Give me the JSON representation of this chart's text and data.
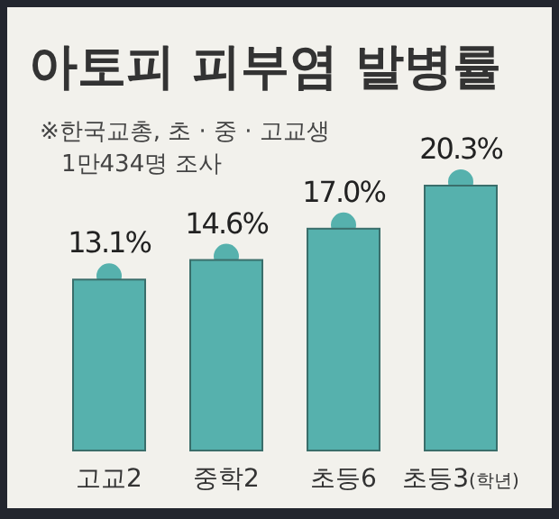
{
  "chart_data": {
    "type": "bar",
    "title": "아토피 피부염 발병률",
    "subtitle": "※한국교총, 초 · 중 · 고교생 1만434명 조사",
    "categories": [
      "고교2",
      "중학2",
      "초등6",
      "초등3$_{(학년)}$"
    ],
    "values": [
      13.1,
      14.6,
      17.0,
      20.3
    ],
    "value_labels": [
      "13.1%",
      "14.6%",
      "17.0%",
      "20.3%"
    ],
    "color": "#56b1ad"
  }
}
